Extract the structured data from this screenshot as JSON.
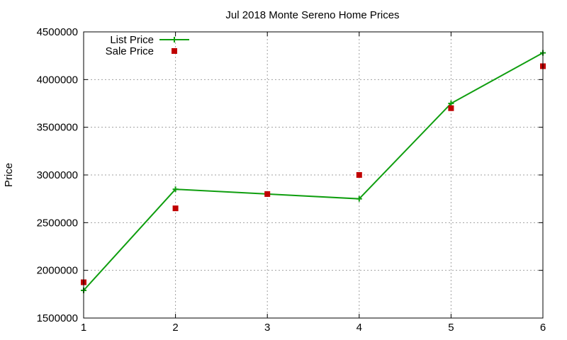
{
  "chart_data": {
    "type": "line",
    "title": "Jul 2018 Monte Sereno Home Prices",
    "xlabel": "",
    "ylabel": "Price",
    "x": [
      1,
      2,
      3,
      4,
      5,
      6
    ],
    "xlim": [
      1,
      6
    ],
    "ylim": [
      1500000,
      4500000
    ],
    "xticks": [
      "1",
      "2",
      "3",
      "4",
      "5",
      "6"
    ],
    "yticks": [
      "1500000",
      "2000000",
      "2500000",
      "3000000",
      "3500000",
      "4000000",
      "4500000"
    ],
    "grid": true,
    "legend_position": "top-left",
    "series": [
      {
        "name": "List Price",
        "style": "line+cross",
        "color": "#0f9e0f",
        "values": [
          1790000,
          2850000,
          2800000,
          2750000,
          3750000,
          4280000
        ]
      },
      {
        "name": "Sale Price",
        "style": "square-markers",
        "color": "#c00000",
        "values": [
          1875000,
          2650000,
          2800000,
          3000000,
          3700000,
          4140000
        ]
      }
    ]
  }
}
